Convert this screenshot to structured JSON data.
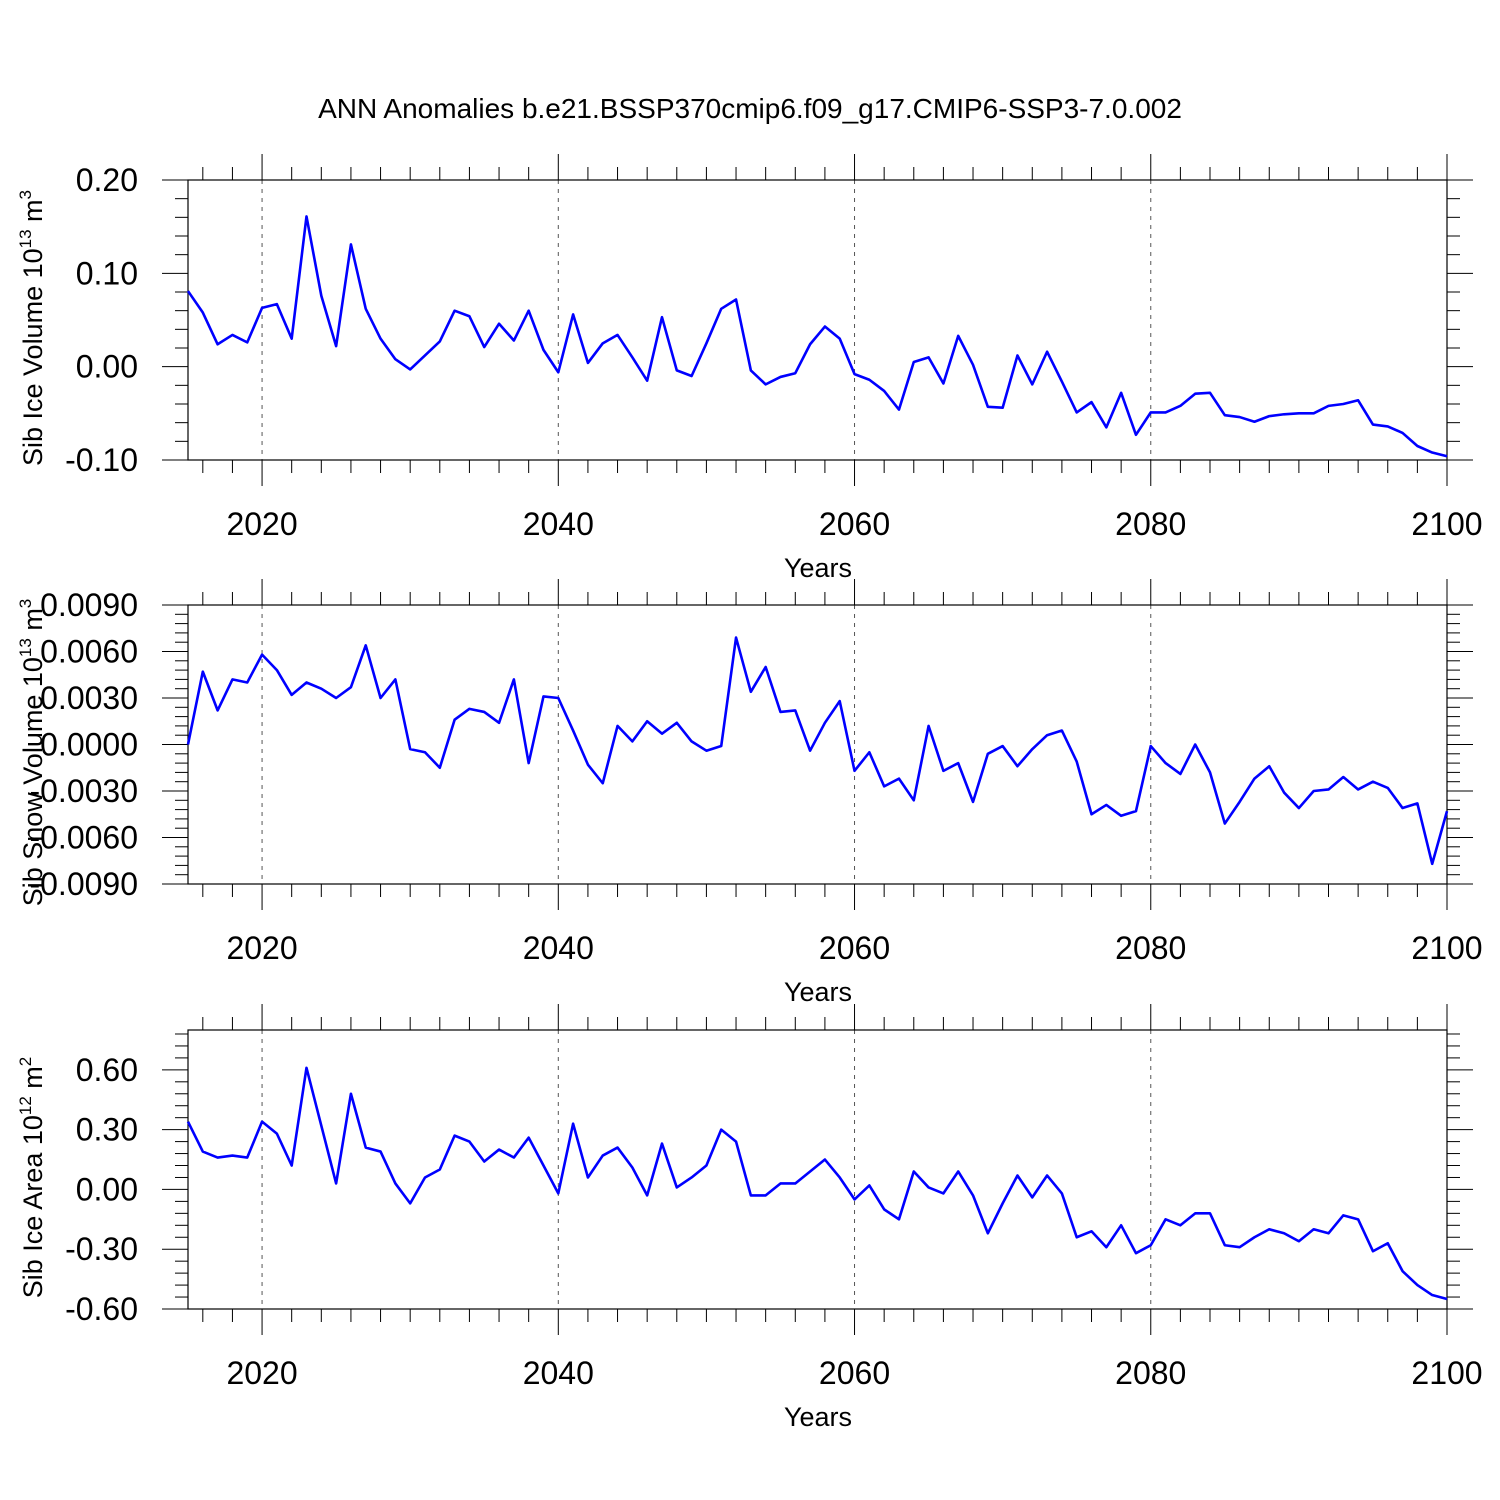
{
  "title": "ANN Anomalies b.e21.BSSP370cmip6.f09_g17.CMIP6-SSP3-7.0.002",
  "colors": {
    "line": "#0000ff",
    "axis": "#000000",
    "grid": "#555555"
  },
  "chart_data": [
    {
      "type": "line",
      "ylabel_main": "Sib Ice Volume 10",
      "ylabel_exp": "13",
      "ylabel_unit": " m",
      "ylabel_unit_exp": "3",
      "xlabel": "Years",
      "xlim": [
        2015,
        2100
      ],
      "ylim": [
        -0.1,
        0.2
      ],
      "xticks": [
        2020,
        2040,
        2060,
        2080,
        2100
      ],
      "xtick_labels": [
        "2020",
        "2040",
        "2060",
        "2080",
        "2100"
      ],
      "yticks": [
        -0.1,
        0.0,
        0.1,
        0.2
      ],
      "ytick_labels": [
        "-0.10",
        "0.00",
        "0.10",
        "0.20"
      ],
      "x_start": 2015,
      "values": [
        0.081,
        0.058,
        0.024,
        0.034,
        0.026,
        0.063,
        0.067,
        0.03,
        0.161,
        0.076,
        0.022,
        0.131,
        0.062,
        0.03,
        0.008,
        -0.003,
        0.012,
        0.027,
        0.06,
        0.054,
        0.021,
        0.046,
        0.028,
        0.06,
        0.018,
        -0.006,
        0.056,
        0.004,
        0.025,
        0.034,
        0.01,
        -0.015,
        0.053,
        -0.004,
        -0.01,
        0.025,
        0.062,
        0.072,
        -0.004,
        -0.019,
        -0.011,
        -0.007,
        0.024,
        0.043,
        0.03,
        -0.008,
        -0.014,
        -0.026,
        -0.046,
        0.005,
        0.01,
        -0.018,
        0.033,
        0.002,
        -0.043,
        -0.044,
        0.012,
        -0.019,
        0.016,
        -0.016,
        -0.049,
        -0.038,
        -0.065,
        -0.028,
        -0.073,
        -0.049,
        -0.049,
        -0.042,
        -0.029,
        -0.028,
        -0.052,
        -0.054,
        -0.059,
        -0.053,
        -0.051,
        -0.05,
        -0.05,
        -0.042,
        -0.04,
        -0.036,
        -0.062,
        -0.064,
        -0.071,
        -0.085,
        -0.092,
        -0.096
      ]
    },
    {
      "type": "line",
      "ylabel_main": "Sib Snow Volume 10",
      "ylabel_exp": "13",
      "ylabel_unit": " m",
      "ylabel_unit_exp": "3",
      "xlabel": "Years",
      "xlim": [
        2015,
        2100
      ],
      "ylim": [
        -0.009,
        0.009
      ],
      "xticks": [
        2020,
        2040,
        2060,
        2080,
        2100
      ],
      "xtick_labels": [
        "2020",
        "2040",
        "2060",
        "2080",
        "2100"
      ],
      "yticks": [
        -0.009,
        -0.006,
        -0.003,
        0.0,
        0.003,
        0.006,
        0.009
      ],
      "ytick_labels": [
        "-0.0090",
        "-0.0060",
        "-0.0030",
        "0.0000",
        "0.0030",
        "0.0060",
        "0.0090"
      ],
      "x_start": 2015,
      "values": [
        0.0,
        0.0047,
        0.0022,
        0.0042,
        0.004,
        0.0058,
        0.0048,
        0.0032,
        0.004,
        0.0036,
        0.003,
        0.0037,
        0.0064,
        0.003,
        0.0042,
        -0.0003,
        -0.0005,
        -0.0015,
        0.0016,
        0.0023,
        0.0021,
        0.0014,
        0.0042,
        -0.0012,
        0.0031,
        0.003,
        0.0009,
        -0.0013,
        -0.0025,
        0.0012,
        0.0002,
        0.0015,
        0.0007,
        0.0014,
        0.0002,
        -0.0004,
        -0.0001,
        0.0069,
        0.0034,
        0.005,
        0.0021,
        0.0022,
        -0.0004,
        0.0014,
        0.0028,
        -0.0017,
        -0.0005,
        -0.0027,
        -0.0022,
        -0.0036,
        0.0012,
        -0.0017,
        -0.0012,
        -0.0037,
        -0.0006,
        -0.0001,
        -0.0014,
        -0.0003,
        0.0006,
        0.0009,
        -0.0011,
        -0.0045,
        -0.0039,
        -0.0046,
        -0.0043,
        -0.0001,
        -0.0012,
        -0.0019,
        0.0,
        -0.0018,
        -0.0051,
        -0.0037,
        -0.0022,
        -0.0014,
        -0.0031,
        -0.0041,
        -0.003,
        -0.0029,
        -0.0021,
        -0.0029,
        -0.0024,
        -0.0028,
        -0.0041,
        -0.0038,
        -0.0077,
        -0.0043
      ]
    },
    {
      "type": "line",
      "ylabel_main": "Sib Ice Area 10",
      "ylabel_exp": "12",
      "ylabel_unit": " m",
      "ylabel_unit_exp": "2",
      "xlabel": "Years",
      "xlim": [
        2015,
        2100
      ],
      "ylim": [
        -0.6,
        0.8
      ],
      "xticks": [
        2020,
        2040,
        2060,
        2080,
        2100
      ],
      "xtick_labels": [
        "2020",
        "2040",
        "2060",
        "2080",
        "2100"
      ],
      "yticks": [
        -0.6,
        -0.3,
        0.0,
        0.3,
        0.6
      ],
      "ytick_labels": [
        "-0.60",
        "-0.30",
        "0.00",
        "0.30",
        "0.60"
      ],
      "x_start": 2015,
      "values": [
        0.34,
        0.19,
        0.16,
        0.17,
        0.16,
        0.34,
        0.28,
        0.12,
        0.61,
        0.32,
        0.03,
        0.48,
        0.21,
        0.19,
        0.03,
        -0.07,
        0.06,
        0.1,
        0.27,
        0.24,
        0.14,
        0.2,
        0.16,
        0.26,
        0.12,
        -0.02,
        0.33,
        0.06,
        0.17,
        0.21,
        0.11,
        -0.03,
        0.23,
        0.01,
        0.06,
        0.12,
        0.3,
        0.24,
        -0.03,
        -0.03,
        0.03,
        0.03,
        0.09,
        0.15,
        0.06,
        -0.05,
        0.02,
        -0.1,
        -0.15,
        0.09,
        0.01,
        -0.02,
        0.09,
        -0.03,
        -0.22,
        -0.07,
        0.07,
        -0.04,
        0.07,
        -0.02,
        -0.24,
        -0.21,
        -0.29,
        -0.18,
        -0.32,
        -0.28,
        -0.15,
        -0.18,
        -0.12,
        -0.12,
        -0.28,
        -0.29,
        -0.24,
        -0.2,
        -0.22,
        -0.26,
        -0.2,
        -0.22,
        -0.13,
        -0.15,
        -0.31,
        -0.27,
        -0.41,
        -0.48,
        -0.53,
        -0.55
      ]
    }
  ]
}
